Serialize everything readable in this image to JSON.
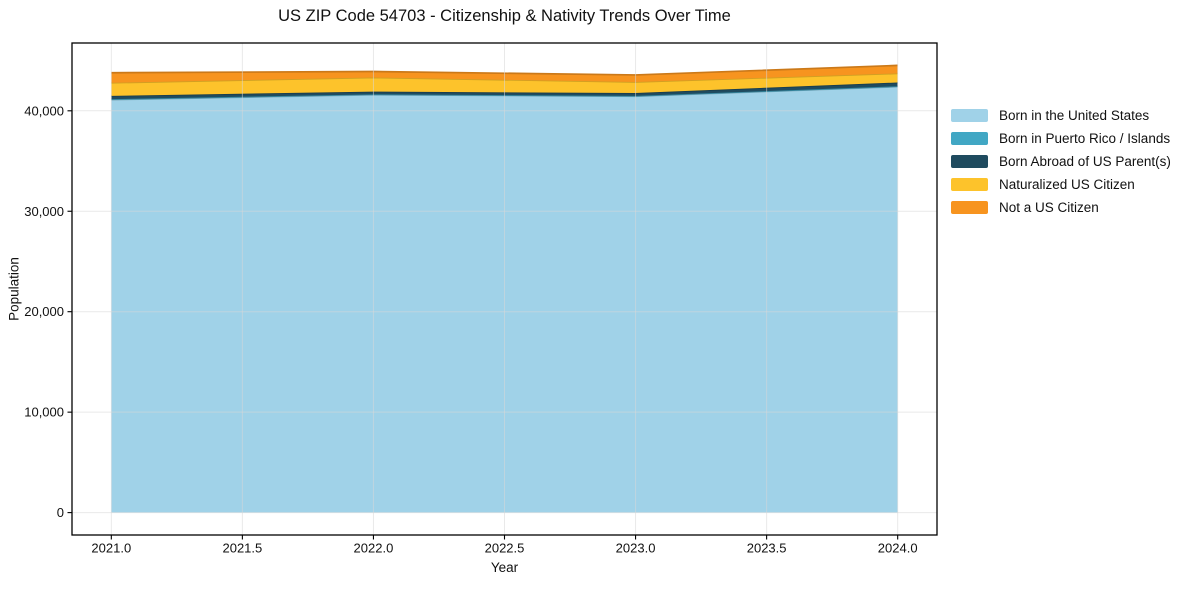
{
  "chart_data": {
    "type": "area",
    "stacked": true,
    "title": "US ZIP Code 54703 - Citizenship & Nativity Trends Over Time",
    "xlabel": "Year",
    "ylabel": "Population",
    "x": [
      2021,
      2022,
      2023,
      2024
    ],
    "series": [
      {
        "name": "Born in the United States",
        "color": "#A0D2E8",
        "values": [
          41100,
          41600,
          41450,
          42400
        ]
      },
      {
        "name": "Born in Puerto Rico / Islands",
        "color": "#41A7C4",
        "values": [
          60,
          40,
          30,
          50
        ]
      },
      {
        "name": "Born Abroad of US Parent(s)",
        "color": "#1F4B5F",
        "values": [
          330,
          270,
          290,
          370
        ]
      },
      {
        "name": "Naturalized US Citizen",
        "color": "#FDC32B",
        "values": [
          1300,
          1400,
          1100,
          900
        ]
      },
      {
        "name": "Not a US Citizen",
        "color": "#F7941F",
        "values": [
          1000,
          600,
          700,
          800
        ]
      }
    ],
    "xlim": [
      2020.85,
      2024.15
    ],
    "ylim": [
      -2230,
      46750
    ],
    "x_ticks": {
      "values": [
        2021.0,
        2021.5,
        2022.0,
        2022.5,
        2023.0,
        2023.5,
        2024.0
      ],
      "labels": [
        "2021.0",
        "2021.5",
        "2022.0",
        "2022.5",
        "2023.0",
        "2023.5",
        "2024.0"
      ]
    },
    "y_ticks": {
      "values": [
        0,
        10000,
        20000,
        30000,
        40000
      ],
      "labels": [
        "0",
        "10,000",
        "20,000",
        "30,000",
        "40,000"
      ]
    },
    "grid": true,
    "legend_position": "right of plot, frameless"
  },
  "style_colors": {
    "spine": "#000000",
    "grid": "#d8d8d8",
    "tick_text": "#111111",
    "background": "#ffffff"
  }
}
